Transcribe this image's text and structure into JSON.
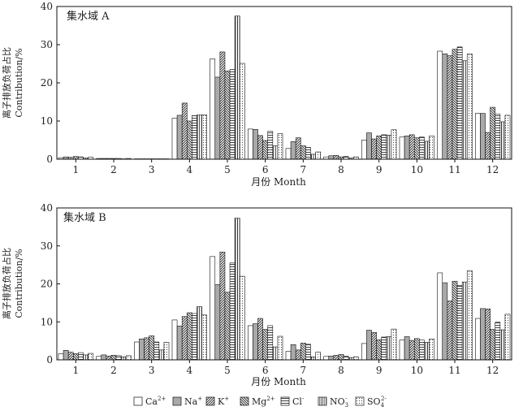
{
  "legend": [
    {
      "label": "Ca",
      "sup": "2+",
      "pattern": "white"
    },
    {
      "label": "Na",
      "sup": "+",
      "pattern": "gray"
    },
    {
      "label": "K",
      "sup": "+",
      "pattern": "diag_fwd"
    },
    {
      "label": "Mg",
      "sup": "2+",
      "pattern": "diag_back"
    },
    {
      "label": "Cl",
      "sup": "-",
      "pattern": "horiz"
    },
    {
      "label": "NO",
      "sup": "-",
      "sub": "3",
      "pattern": "vert"
    },
    {
      "label": "SO",
      "sup": "2-",
      "sub": "4",
      "pattern": "dots"
    }
  ],
  "chart_data": [
    {
      "type": "bar",
      "title": "集水域 A",
      "ylabel_cn": "离子排放负荷占比",
      "ylabel_en": "Contribution/%",
      "xlabel": "月份 Month",
      "ylim": [
        0,
        40
      ],
      "yticks": [
        0,
        10,
        20,
        30,
        40
      ],
      "categories": [
        "1",
        "2",
        "3",
        "4",
        "5",
        "6",
        "7",
        "8",
        "9",
        "10",
        "11",
        "12"
      ],
      "series": [
        {
          "name": "Ca2+",
          "values": [
            0.4,
            0.2,
            0.1,
            10.7,
            26.3,
            7.9,
            2.8,
            0.6,
            5.0,
            5.8,
            28.3,
            12.0
          ]
        },
        {
          "name": "Na+",
          "values": [
            0.6,
            0.2,
            0.1,
            11.5,
            21.5,
            7.8,
            4.6,
            0.9,
            6.9,
            6.1,
            27.6,
            12.0
          ]
        },
        {
          "name": "K+",
          "values": [
            0.5,
            0.2,
            0.1,
            14.7,
            28.1,
            6.2,
            5.6,
            1.0,
            5.3,
            6.4,
            27.1,
            7.0
          ]
        },
        {
          "name": "Mg2+",
          "values": [
            0.7,
            0.2,
            0.1,
            10.0,
            23.1,
            4.9,
            3.5,
            0.6,
            6.1,
            5.6,
            28.8,
            13.6
          ]
        },
        {
          "name": "Cl-",
          "values": [
            0.6,
            0.2,
            0.1,
            11.4,
            23.5,
            7.3,
            3.1,
            0.7,
            6.4,
            5.8,
            29.4,
            11.8
          ]
        },
        {
          "name": "NO3-",
          "values": [
            0.3,
            0.1,
            0.1,
            11.6,
            37.5,
            3.5,
            1.3,
            0.3,
            6.3,
            4.7,
            25.8,
            9.8
          ]
        },
        {
          "name": "SO42-",
          "values": [
            0.5,
            0.2,
            0.1,
            11.6,
            25.1,
            6.7,
            1.9,
            0.6,
            7.7,
            6.1,
            27.6,
            11.5
          ]
        }
      ]
    },
    {
      "type": "bar",
      "title": "集水域 B",
      "ylabel_cn": "离子排放负荷占比",
      "ylabel_en": "Contribution/%",
      "xlabel": "月份 Month",
      "ylim": [
        0,
        40
      ],
      "yticks": [
        0,
        10,
        20,
        30,
        40
      ],
      "categories": [
        "1",
        "2",
        "3",
        "4",
        "5",
        "6",
        "7",
        "8",
        "9",
        "10",
        "11",
        "12"
      ],
      "series": [
        {
          "name": "Ca2+",
          "values": [
            1.6,
            0.9,
            4.7,
            10.5,
            27.2,
            9.0,
            2.2,
            0.9,
            4.3,
            5.2,
            22.9,
            10.9
          ]
        },
        {
          "name": "Na+",
          "values": [
            2.5,
            1.3,
            5.5,
            8.9,
            19.8,
            9.5,
            4.0,
            1.0,
            7.8,
            6.1,
            20.3,
            13.5
          ]
        },
        {
          "name": "K+",
          "values": [
            2.0,
            1.0,
            5.8,
            11.4,
            28.4,
            10.9,
            2.6,
            1.2,
            7.2,
            5.1,
            15.5,
            13.4
          ]
        },
        {
          "name": "Mg2+",
          "values": [
            1.6,
            1.2,
            6.3,
            12.4,
            17.8,
            8.0,
            4.4,
            1.4,
            5.3,
            5.6,
            20.7,
            8.0
          ]
        },
        {
          "name": "Cl-",
          "values": [
            1.9,
            1.1,
            4.7,
            12.2,
            25.5,
            9.0,
            4.1,
            1.0,
            6.0,
            5.2,
            19.6,
            9.9
          ]
        },
        {
          "name": "NO3-",
          "values": [
            1.3,
            0.8,
            2.6,
            14.0,
            37.3,
            3.4,
            0.8,
            0.6,
            6.1,
            4.6,
            20.5,
            7.9
          ]
        },
        {
          "name": "SO42-",
          "values": [
            1.7,
            1.1,
            4.6,
            11.8,
            22.0,
            6.2,
            2.0,
            0.8,
            8.1,
            5.5,
            23.5,
            12.0
          ]
        }
      ]
    }
  ]
}
